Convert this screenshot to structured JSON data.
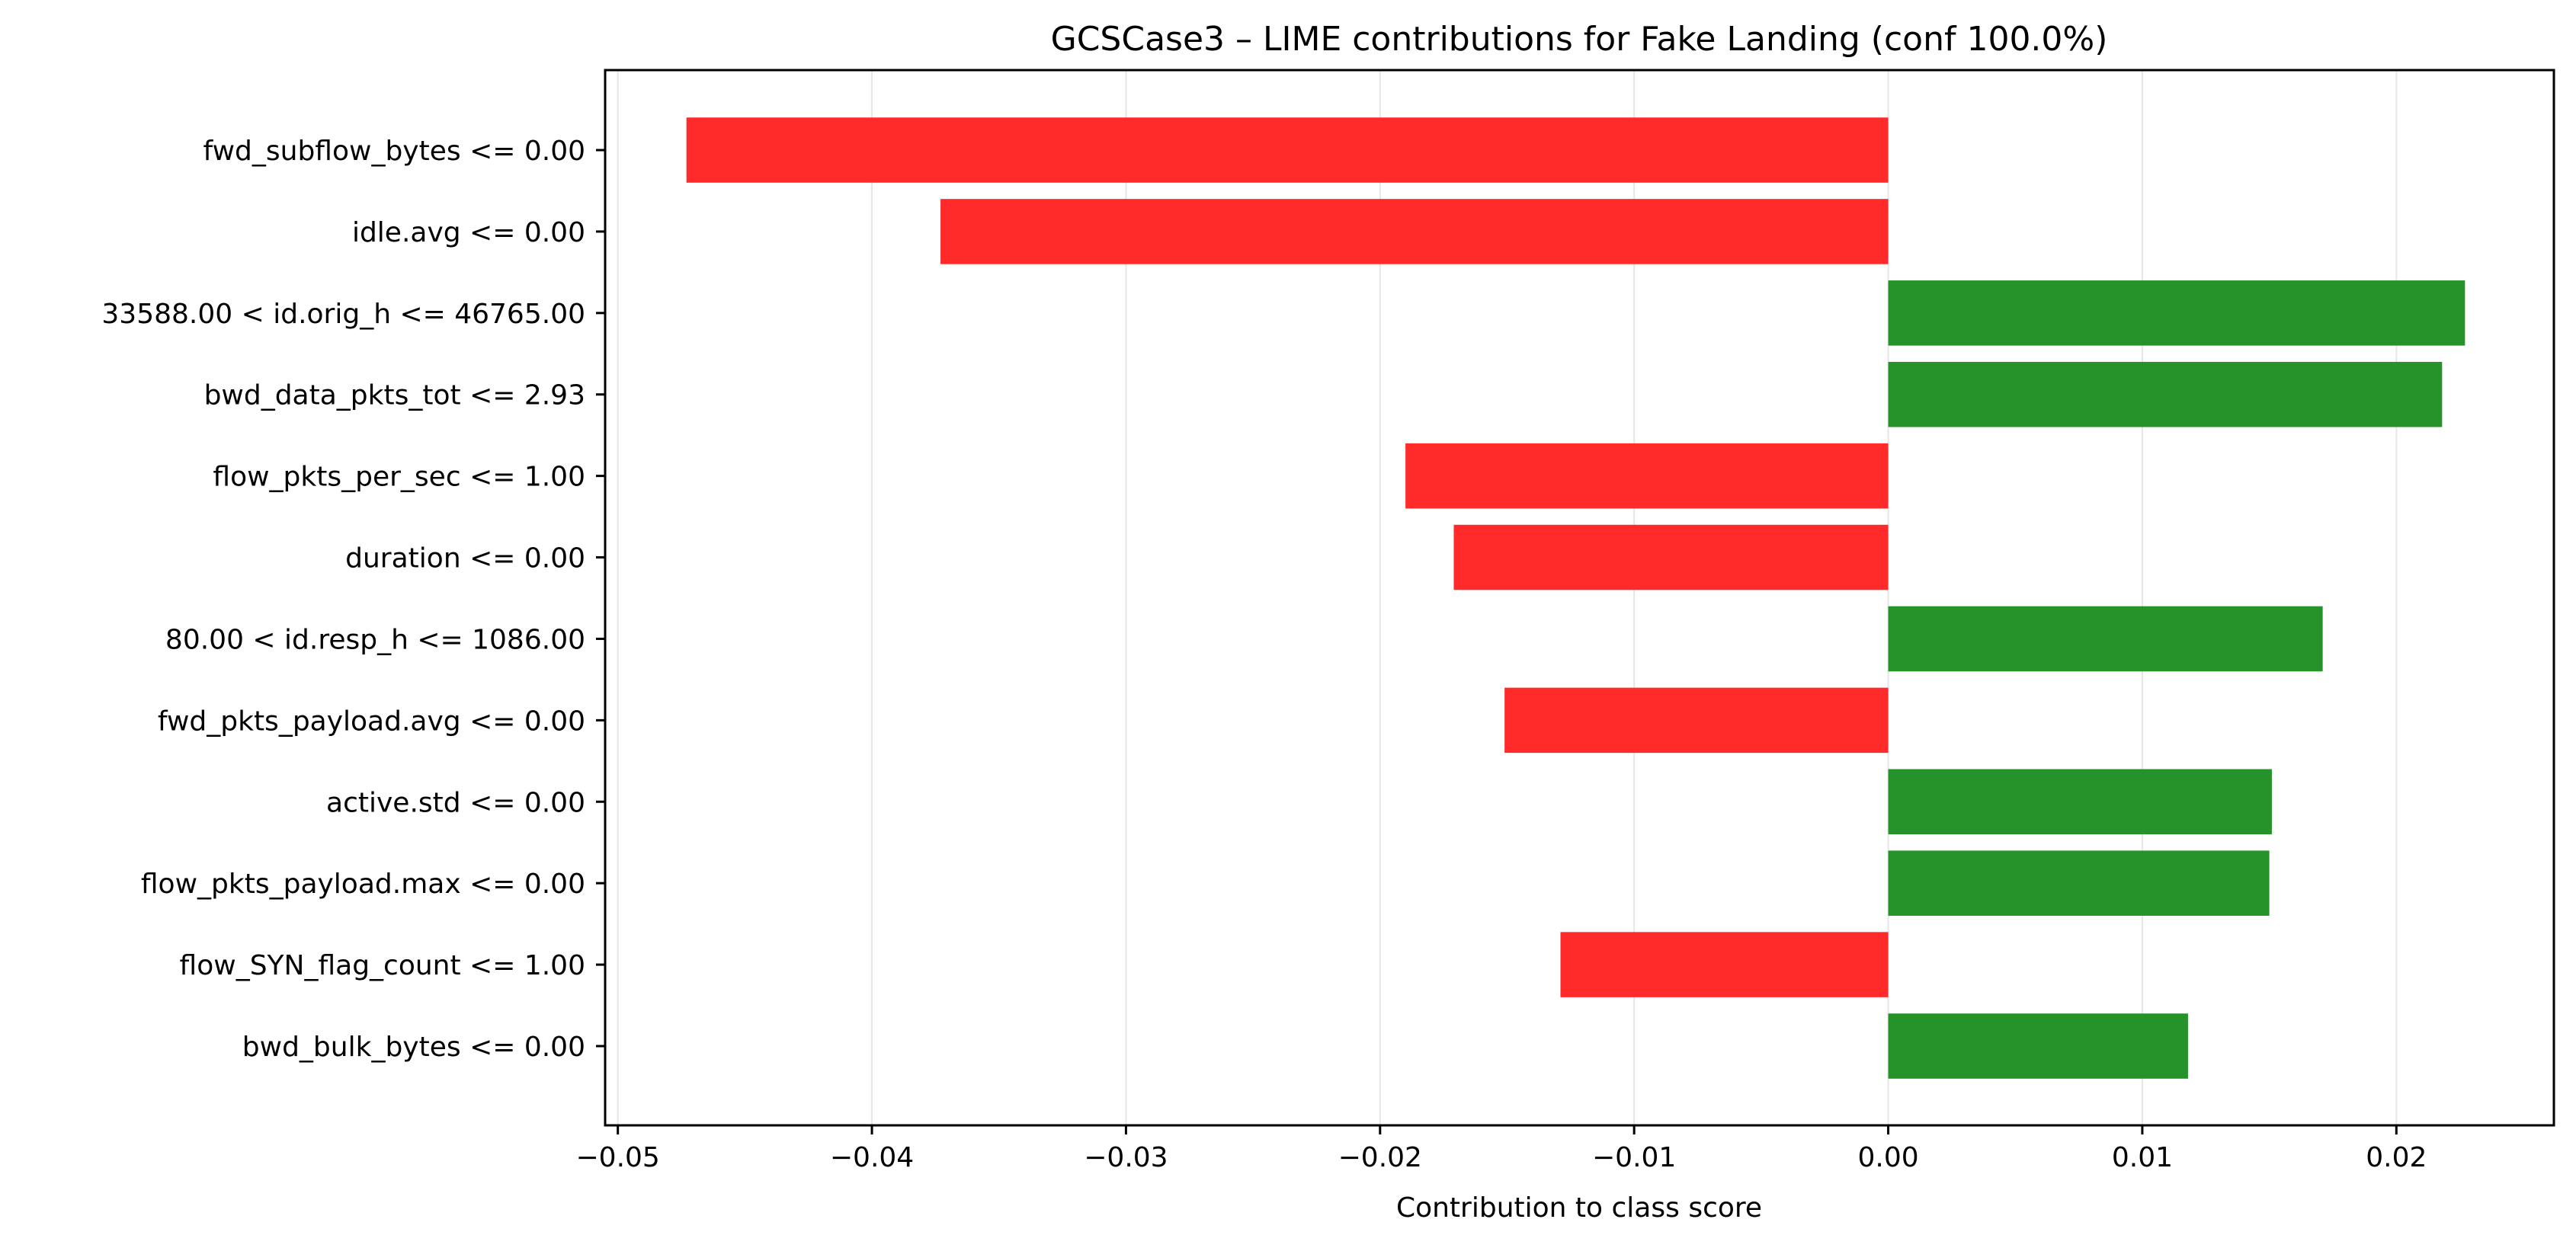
{
  "chart_data": {
    "type": "bar",
    "orientation": "horizontal",
    "title": "GCSCase3 – LIME contributions for Fake Landing (conf 100.0%)",
    "xlabel": "Contribution to class score",
    "ylabel": "",
    "xlim": [
      -0.0505,
      0.0262
    ],
    "xticks": [
      -0.05,
      -0.04,
      -0.03,
      -0.02,
      -0.01,
      0.0,
      0.01,
      0.02
    ],
    "xtick_labels": [
      "−0.05",
      "−0.04",
      "−0.03",
      "−0.02",
      "−0.01",
      "0.00",
      "0.01",
      "0.02"
    ],
    "grid": "x",
    "categories": [
      "fwd_subflow_bytes <= 0.00",
      "idle.avg <= 0.00",
      "33588.00 < id.orig_h <= 46765.00",
      "bwd_data_pkts_tot <= 2.93",
      "flow_pkts_per_sec <= 1.00",
      "duration <= 0.00",
      "80.00 < id.resp_h <= 1086.00",
      "fwd_pkts_payload.avg <= 0.00",
      "active.std <= 0.00",
      "flow_pkts_payload.max <= 0.00",
      "flow_SYN_flag_count <= 1.00",
      "bwd_bulk_bytes <= 0.00"
    ],
    "values": [
      -0.0473,
      -0.0373,
      0.0227,
      0.0218,
      -0.019,
      -0.0171,
      0.0171,
      -0.0151,
      0.0151,
      0.015,
      -0.0129,
      0.0118
    ],
    "colors": {
      "negative": "#ff2a2a",
      "positive": "#26922a"
    }
  }
}
